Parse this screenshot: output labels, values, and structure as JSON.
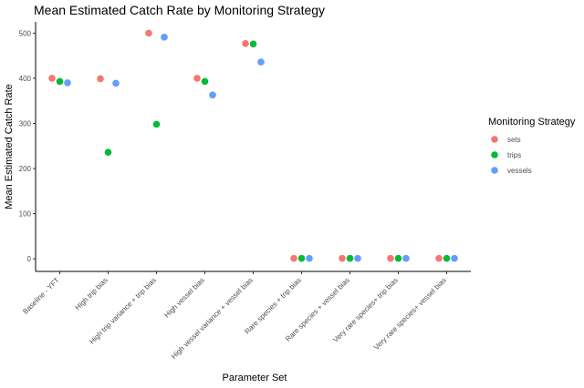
{
  "chart_data": {
    "type": "scatter",
    "title": "Mean Estimated Catch Rate by Monitoring Strategy",
    "xlabel": "Parameter Set",
    "ylabel": "Mean Estimated Catch Rate",
    "ylim": [
      -28,
      525
    ],
    "yticks": [
      0,
      100,
      200,
      300,
      400,
      500
    ],
    "grid": false,
    "legend_position": "right",
    "legend_title": "Monitoring Strategy",
    "categories": [
      "Baseline - YFT",
      "High trip bias",
      "High trip variance + trip bias",
      "High vessel bias",
      "High vessel variance + vessel bias",
      "Rare species + trip bias",
      "Rare species + vessel bias",
      "Very rare species+ trip bias",
      "Very rare species+ vessel bias"
    ],
    "series": [
      {
        "name": "sets",
        "color": "#F8766D",
        "values": [
          400,
          399,
          500,
          400,
          477,
          1,
          1,
          1,
          1
        ]
      },
      {
        "name": "trips",
        "color": "#00BA38",
        "values": [
          393,
          236,
          298,
          393,
          476,
          1,
          1,
          1,
          1
        ]
      },
      {
        "name": "vessels",
        "color": "#619CFF",
        "values": [
          390,
          389,
          491,
          363,
          436,
          1,
          1,
          1,
          1
        ]
      }
    ]
  }
}
